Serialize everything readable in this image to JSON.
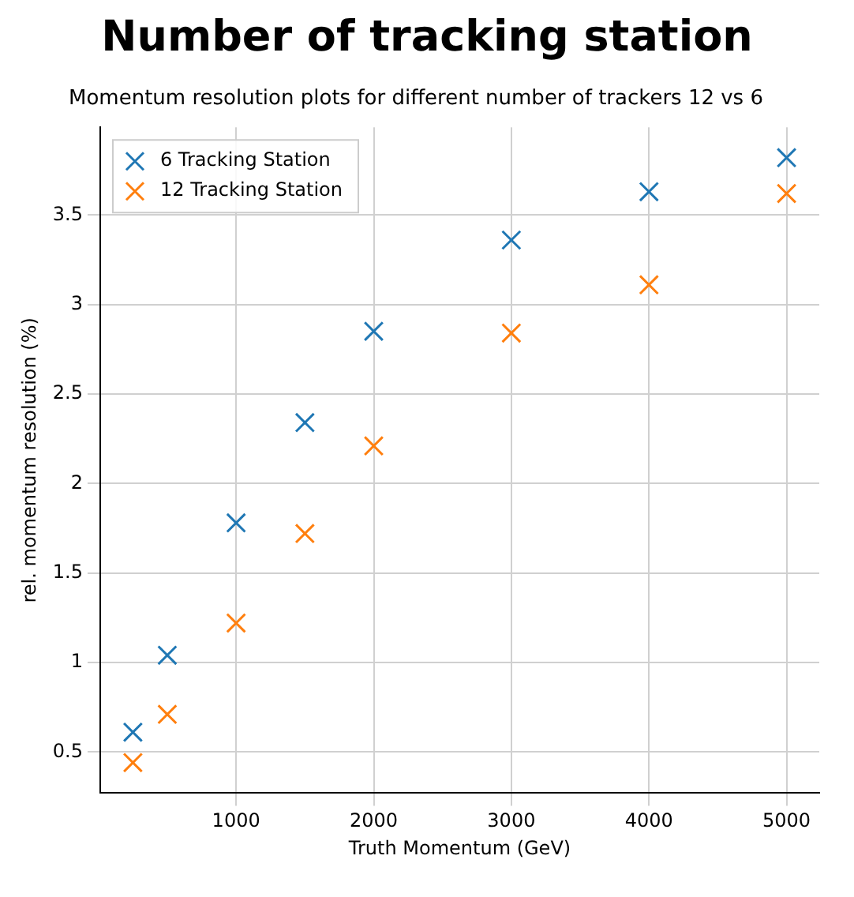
{
  "chart_data": {
    "type": "scatter",
    "title": "Number of tracking station",
    "subtitle": "Momentum resolution plots for different number of trackers 12 vs 6",
    "xlabel": "Truth Momentum (GeV)",
    "ylabel": "rel. momentum resolution (%)",
    "x": [
      250,
      500,
      1000,
      1500,
      2000,
      3000,
      4000,
      5000
    ],
    "series": [
      {
        "name": "6 Tracking Station",
        "color": "#1f77b4",
        "values": [
          0.61,
          1.04,
          1.78,
          2.34,
          2.85,
          3.36,
          3.63,
          3.82
        ]
      },
      {
        "name": "12 Tracking Station",
        "color": "#ff7f0e",
        "values": [
          0.44,
          0.71,
          1.22,
          1.72,
          2.21,
          2.84,
          3.11,
          3.62
        ]
      }
    ],
    "xlim": [
      12.5,
      5237.5
    ],
    "xticks": [
      1000,
      2000,
      3000,
      4000,
      5000
    ],
    "ylim": [
      0.27,
      3.99
    ],
    "yticks": [
      0.5,
      1.0,
      1.5,
      2.0,
      2.5,
      3.0,
      3.5
    ],
    "grid": true,
    "legend": "top left",
    "marker": "cross"
  }
}
